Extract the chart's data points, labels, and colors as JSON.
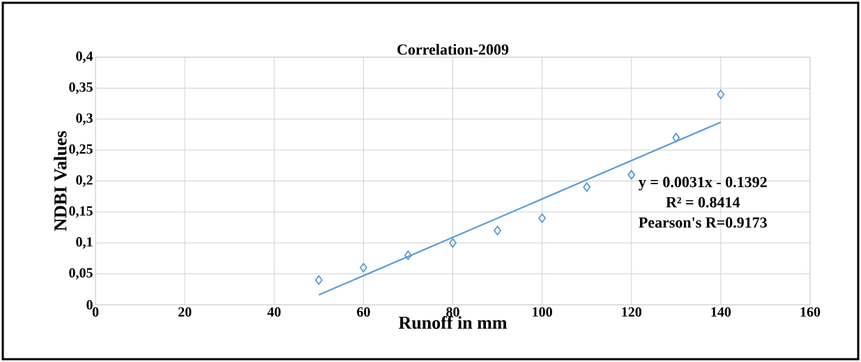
{
  "chart_data": {
    "type": "scatter",
    "title": "Correlation-2009",
    "xlabel": "Runoff in mm",
    "ylabel": "NDBI Values",
    "xlim": [
      0,
      160
    ],
    "xticks": [
      0,
      20,
      40,
      60,
      80,
      100,
      120,
      140,
      160
    ],
    "ylim": [
      0,
      0.4
    ],
    "yticks": [
      {
        "value": 0,
        "label": "0"
      },
      {
        "value": 0.05,
        "label": "0,05"
      },
      {
        "value": 0.1,
        "label": "0,1"
      },
      {
        "value": 0.15,
        "label": "0,15"
      },
      {
        "value": 0.2,
        "label": "0,2"
      },
      {
        "value": 0.25,
        "label": "0,25"
      },
      {
        "value": 0.3,
        "label": "0,3"
      },
      {
        "value": 0.35,
        "label": "0,35"
      },
      {
        "value": 0.4,
        "label": "0,4"
      }
    ],
    "grid": true,
    "series": [
      {
        "marker": "diamond",
        "color": "#5b9bd5",
        "x": [
          50,
          60,
          70,
          80,
          90,
          100,
          110,
          120,
          130,
          140
        ],
        "values": [
          0.04,
          0.06,
          0.08,
          0.1,
          0.12,
          0.14,
          0.19,
          0.21,
          0.27,
          0.34
        ]
      },
      {
        "type": "line",
        "color": "#5b9bd5",
        "x": [
          50,
          140
        ],
        "values": [
          0.016,
          0.295
        ]
      }
    ],
    "annotations": [
      "y = 0.0031x - 0.1392",
      "R² = 0.8414",
      "Pearson's R=0.9173"
    ]
  }
}
